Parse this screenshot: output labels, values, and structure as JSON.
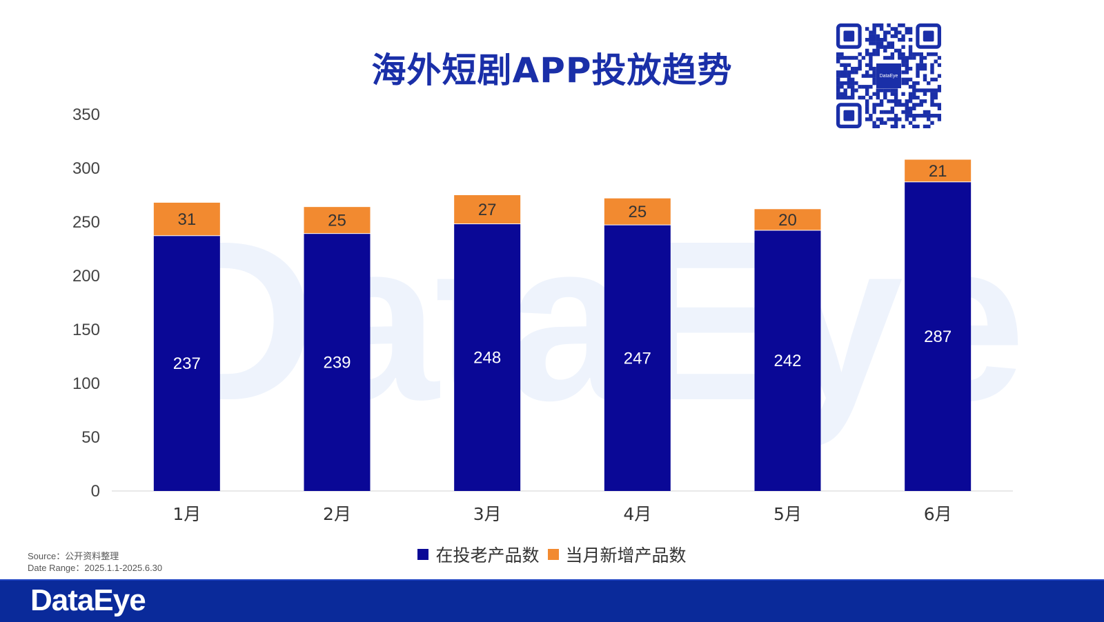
{
  "title": "海外短剧APP投放趋势",
  "watermark": "DataEye",
  "qr_badge": "DataEye",
  "source_line": "Source：公开资料整理",
  "date_range_line": "Date Range：2025.1.1-2025.6.30",
  "footer_logo": "DataEye",
  "colors": {
    "title": "#1a2fa8",
    "series_old": "#0a0896",
    "series_new": "#f28a30",
    "footer": "#0a2a9a"
  },
  "chart_data": {
    "type": "bar",
    "stacked": true,
    "categories": [
      "1月",
      "2月",
      "3月",
      "4月",
      "5月",
      "6月"
    ],
    "series": [
      {
        "name": "在投老产品数",
        "values": [
          237,
          239,
          248,
          247,
          242,
          287
        ],
        "color": "#0a0896"
      },
      {
        "name": "当月新增产品数",
        "values": [
          31,
          25,
          27,
          25,
          20,
          21
        ],
        "color": "#f28a30"
      }
    ],
    "ylim": [
      0,
      350
    ],
    "yticks": [
      0,
      50,
      100,
      150,
      200,
      250,
      300,
      350
    ],
    "legend": "bottom",
    "grid": false
  }
}
